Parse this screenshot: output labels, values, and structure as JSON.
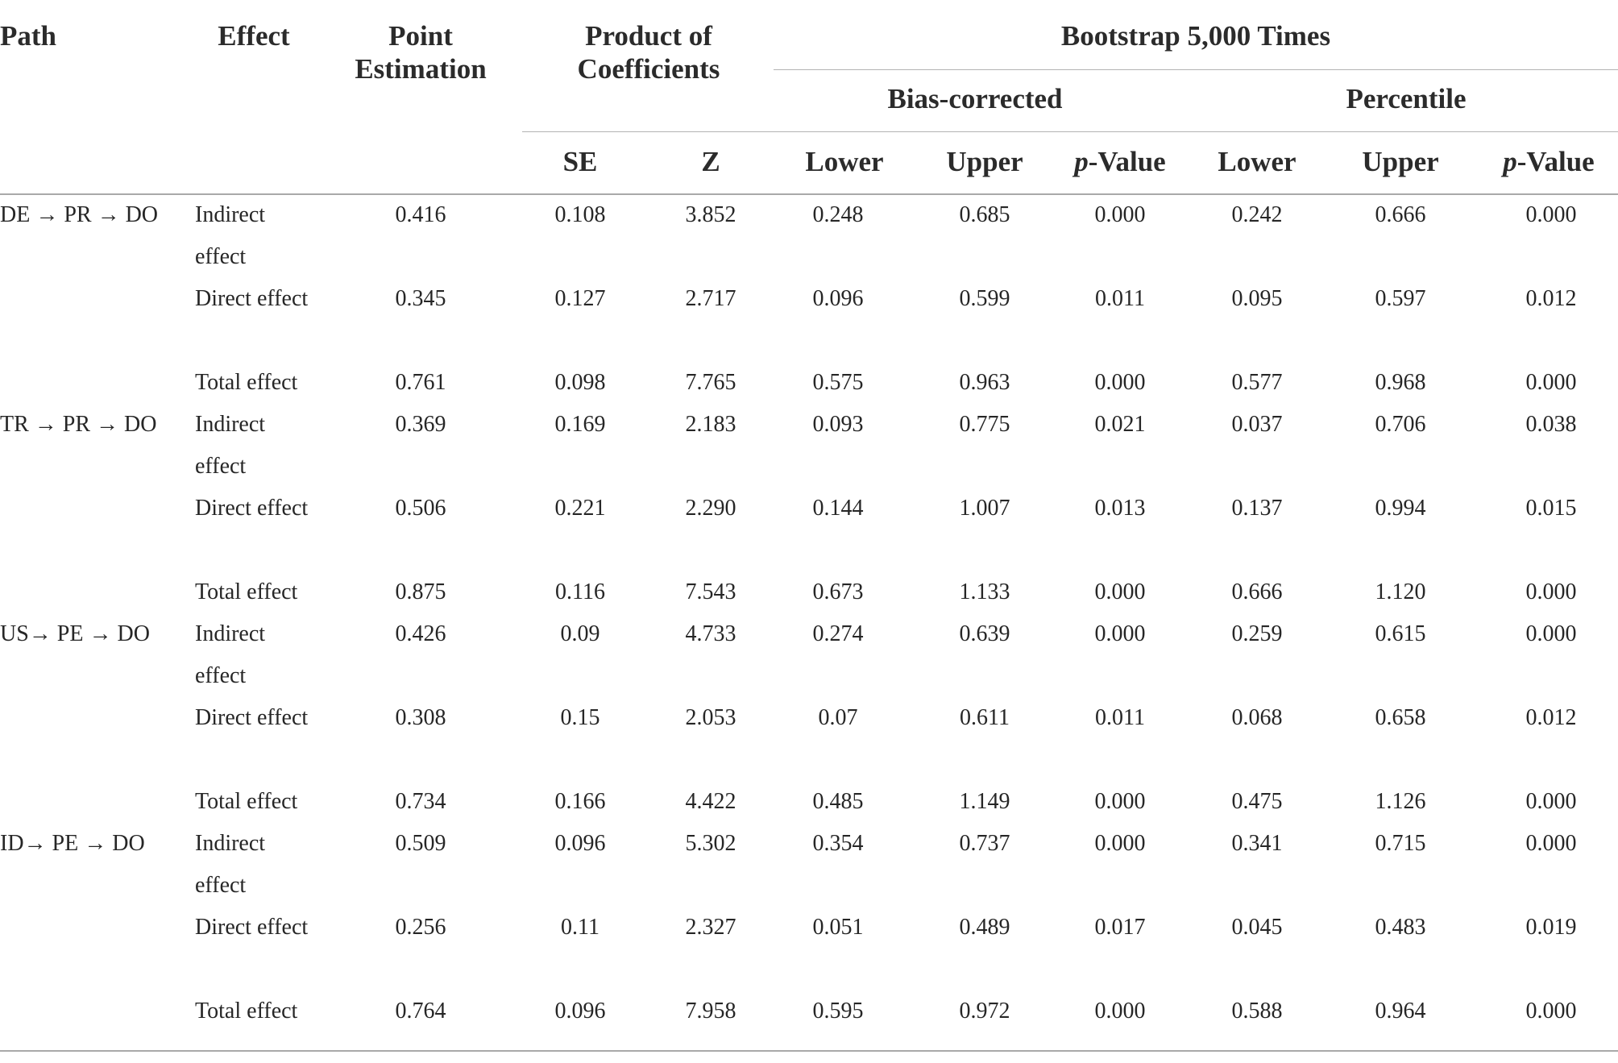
{
  "headers": {
    "path": "Path",
    "effect": "Effect",
    "point_estimation": "Point Estimation",
    "product_of_coefficients": "Product of Coefficients",
    "bootstrap": "Bootstrap 5,000 Times",
    "bias_corrected": "Bias-corrected",
    "percentile": "Percentile",
    "se": "SE",
    "z": "Z",
    "lower": "Lower",
    "upper": "Upper",
    "p_italic": "p",
    "p_rest": "-Value"
  },
  "rows": [
    {
      "path": "DE → PR → DO",
      "effect": "Indirect effect",
      "point": "0.416",
      "se": "0.108",
      "z": "3.852",
      "bc_lower": "0.248",
      "bc_upper": "0.685",
      "bc_p": "0.000",
      "pc_lower": "0.242",
      "pc_upper": "0.666",
      "pc_p": "0.000"
    },
    {
      "path": "",
      "effect": "Direct effect",
      "point": "0.345",
      "se": "0.127",
      "z": "2.717",
      "bc_lower": "0.096",
      "bc_upper": "0.599",
      "bc_p": "0.011",
      "pc_lower": "0.095",
      "pc_upper": "0.597",
      "pc_p": "0.012"
    },
    {
      "path": "",
      "effect": "Total effect",
      "point": "0.761",
      "se": "0.098",
      "z": "7.765",
      "bc_lower": "0.575",
      "bc_upper": "0.963",
      "bc_p": "0.000",
      "pc_lower": "0.577",
      "pc_upper": "0.968",
      "pc_p": "0.000"
    },
    {
      "path": "TR → PR → DO",
      "effect": "Indirect effect",
      "point": "0.369",
      "se": "0.169",
      "z": "2.183",
      "bc_lower": "0.093",
      "bc_upper": "0.775",
      "bc_p": "0.021",
      "pc_lower": "0.037",
      "pc_upper": "0.706",
      "pc_p": "0.038"
    },
    {
      "path": "",
      "effect": "Direct effect",
      "point": "0.506",
      "se": "0.221",
      "z": "2.290",
      "bc_lower": "0.144",
      "bc_upper": "1.007",
      "bc_p": "0.013",
      "pc_lower": "0.137",
      "pc_upper": "0.994",
      "pc_p": "0.015"
    },
    {
      "path": "",
      "effect": "Total effect",
      "point": "0.875",
      "se": "0.116",
      "z": "7.543",
      "bc_lower": "0.673",
      "bc_upper": "1.133",
      "bc_p": "0.000",
      "pc_lower": "0.666",
      "pc_upper": "1.120",
      "pc_p": "0.000"
    },
    {
      "path": "US→ PE → DO",
      "effect": "Indirect effect",
      "point": "0.426",
      "se": "0.09",
      "z": "4.733",
      "bc_lower": "0.274",
      "bc_upper": "0.639",
      "bc_p": "0.000",
      "pc_lower": "0.259",
      "pc_upper": "0.615",
      "pc_p": "0.000"
    },
    {
      "path": "",
      "effect": "Direct effect",
      "point": "0.308",
      "se": "0.15",
      "z": "2.053",
      "bc_lower": "0.07",
      "bc_upper": "0.611",
      "bc_p": "0.011",
      "pc_lower": "0.068",
      "pc_upper": "0.658",
      "pc_p": "0.012"
    },
    {
      "path": "",
      "effect": "Total effect",
      "point": "0.734",
      "se": "0.166",
      "z": "4.422",
      "bc_lower": "0.485",
      "bc_upper": "1.149",
      "bc_p": "0.000",
      "pc_lower": "0.475",
      "pc_upper": "1.126",
      "pc_p": "0.000"
    },
    {
      "path": "ID→ PE → DO",
      "effect": "Indirect effect",
      "point": "0.509",
      "se": "0.096",
      "z": "5.302",
      "bc_lower": "0.354",
      "bc_upper": "0.737",
      "bc_p": "0.000",
      "pc_lower": "0.341",
      "pc_upper": "0.715",
      "pc_p": "0.000"
    },
    {
      "path": "",
      "effect": "Direct effect",
      "point": "0.256",
      "se": "0.11",
      "z": "2.327",
      "bc_lower": "0.051",
      "bc_upper": "0.489",
      "bc_p": "0.017",
      "pc_lower": "0.045",
      "pc_upper": "0.483",
      "pc_p": "0.019"
    },
    {
      "path": "",
      "effect": "Total effect",
      "point": "0.764",
      "se": "0.096",
      "z": "7.958",
      "bc_lower": "0.595",
      "bc_upper": "0.972",
      "bc_p": "0.000",
      "pc_lower": "0.588",
      "pc_upper": "0.964",
      "pc_p": "0.000"
    }
  ]
}
